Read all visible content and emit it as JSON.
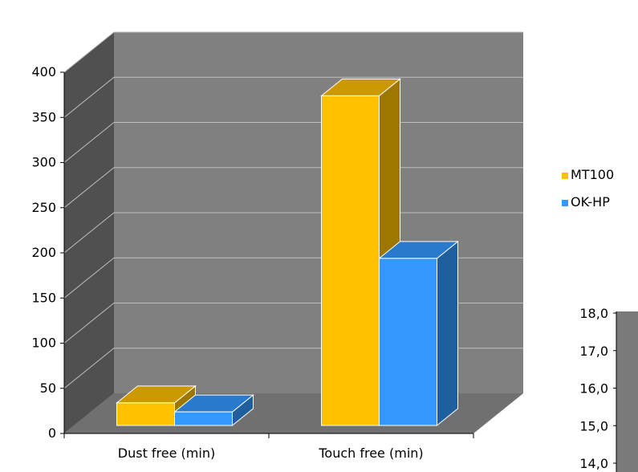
{
  "chart_data": [
    {
      "type": "bar",
      "style": "3d-clustered-column",
      "categories": [
        "Dust free (min)",
        "Touch free (min)"
      ],
      "series": [
        {
          "name": "MT100",
          "color": "#FFC000",
          "values": [
            25,
            365
          ]
        },
        {
          "name": "OK-HP",
          "color": "#3399FF",
          "values": [
            15,
            185
          ]
        }
      ],
      "ylim": [
        0,
        400
      ],
      "yticks": [
        "0",
        "50",
        "100",
        "150",
        "200",
        "250",
        "300",
        "350",
        "400"
      ],
      "grid": true,
      "legend": "right",
      "colors": {
        "back_wall": "#808080",
        "side_wall": "#505050",
        "floor": "#707070",
        "gridline": "#C0C0C0"
      }
    },
    {
      "type": "bar",
      "partial": true,
      "yticks": [
        "18,0",
        "17,0",
        "16,0",
        "15,0",
        "14,0"
      ],
      "ylim": [
        14,
        18
      ]
    }
  ]
}
